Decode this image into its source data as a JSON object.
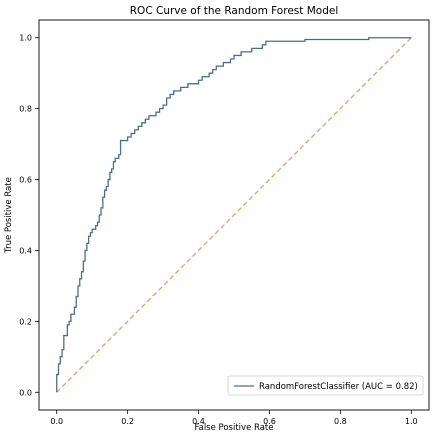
{
  "chart_data": {
    "type": "line",
    "title": "ROC Curve of the Random Forest Model",
    "xlabel": "False Positive Rate",
    "ylabel": "True Positive Rate",
    "xlim": [
      -0.05,
      1.05
    ],
    "ylim": [
      -0.05,
      1.05
    ],
    "xticks": [
      "0.0",
      "0.2",
      "0.4",
      "0.6",
      "0.8",
      "1.0"
    ],
    "yticks": [
      "0.0",
      "0.2",
      "0.4",
      "0.6",
      "0.8",
      "1.0"
    ],
    "grid": false,
    "legend_position": "lower-right",
    "legend": [
      "RandomForestClassifier (AUC = 0.82)"
    ],
    "series": [
      {
        "name": "RandomForestClassifier (AUC = 0.82)",
        "color": "#4a6f8a",
        "style": "step",
        "x": [
          0.0,
          0.0,
          0.005,
          0.01,
          0.015,
          0.02,
          0.03,
          0.035,
          0.04,
          0.05,
          0.055,
          0.06,
          0.065,
          0.07,
          0.075,
          0.08,
          0.085,
          0.09,
          0.095,
          0.1,
          0.105,
          0.11,
          0.115,
          0.12,
          0.125,
          0.13,
          0.135,
          0.14,
          0.145,
          0.15,
          0.155,
          0.16,
          0.165,
          0.17,
          0.175,
          0.18,
          0.185,
          0.19,
          0.2,
          0.21,
          0.22,
          0.23,
          0.24,
          0.25,
          0.26,
          0.27,
          0.28,
          0.29,
          0.3,
          0.31,
          0.32,
          0.33,
          0.34,
          0.35,
          0.36,
          0.37,
          0.38,
          0.39,
          0.4,
          0.41,
          0.42,
          0.43,
          0.44,
          0.45,
          0.46,
          0.47,
          0.48,
          0.49,
          0.5,
          0.51,
          0.52,
          0.53,
          0.54,
          0.55,
          0.56,
          0.57,
          0.58,
          0.59,
          0.6,
          0.62,
          0.65,
          0.7,
          0.75,
          0.8,
          0.85,
          0.88,
          0.9,
          0.92,
          0.95,
          0.98,
          1.0
        ],
        "y": [
          0.0,
          0.05,
          0.08,
          0.1,
          0.12,
          0.16,
          0.19,
          0.2,
          0.22,
          0.24,
          0.27,
          0.3,
          0.32,
          0.34,
          0.37,
          0.4,
          0.42,
          0.44,
          0.45,
          0.46,
          0.46,
          0.47,
          0.48,
          0.5,
          0.52,
          0.55,
          0.57,
          0.58,
          0.6,
          0.62,
          0.63,
          0.65,
          0.66,
          0.66,
          0.67,
          0.71,
          0.71,
          0.71,
          0.72,
          0.73,
          0.74,
          0.75,
          0.76,
          0.77,
          0.78,
          0.78,
          0.79,
          0.8,
          0.81,
          0.83,
          0.84,
          0.85,
          0.85,
          0.86,
          0.86,
          0.87,
          0.87,
          0.87,
          0.88,
          0.89,
          0.89,
          0.9,
          0.91,
          0.92,
          0.92,
          0.93,
          0.93,
          0.94,
          0.95,
          0.95,
          0.96,
          0.96,
          0.96,
          0.97,
          0.97,
          0.97,
          0.98,
          0.99,
          0.99,
          0.99,
          0.99,
          0.995,
          0.995,
          0.995,
          0.995,
          1.0,
          1.0,
          1.0,
          1.0,
          1.0,
          1.0
        ]
      },
      {
        "name": "",
        "color": "#e0a070",
        "style": "dashed",
        "x": [
          0.0,
          1.0
        ],
        "y": [
          0.0,
          1.0
        ]
      }
    ]
  }
}
